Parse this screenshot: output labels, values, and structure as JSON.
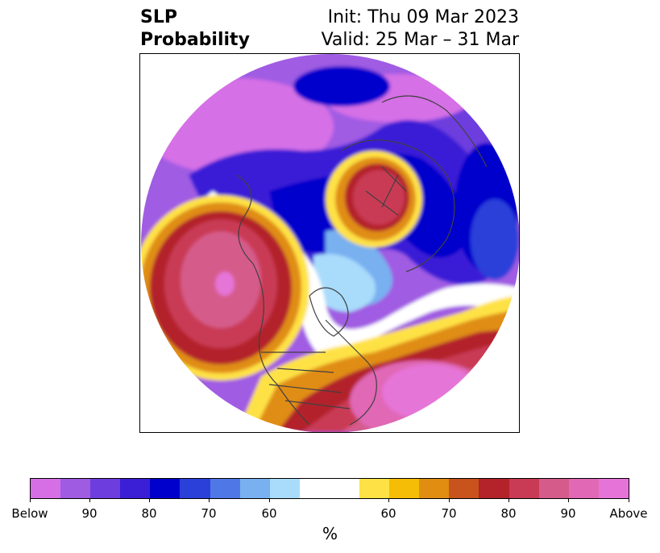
{
  "title": {
    "left_line1": "SLP",
    "left_line2": "Probability",
    "right_line1": "Init: Thu 09 Mar 2023",
    "right_line2": "Valid: 25 Mar – 31 Mar"
  },
  "colors": {
    "below": [
      "#d66fe6",
      "#a05be3",
      "#6d3dde",
      "#3a1fd6",
      "#0000cc",
      "#2b40d9",
      "#4f78e6",
      "#78b0f0",
      "#a9dcfb"
    ],
    "neutral": "#ffffff",
    "above": [
      "#fee245",
      "#f6bd06",
      "#e08d12",
      "#c8531c",
      "#b32329",
      "#c93b55",
      "#d55c8a",
      "#e068b5",
      "#e674d8"
    ]
  },
  "colorbar": {
    "tick_labels": [
      "Below",
      "90",
      "80",
      "70",
      "60",
      "60",
      "70",
      "80",
      "90",
      "Above"
    ],
    "unit": "%"
  }
}
